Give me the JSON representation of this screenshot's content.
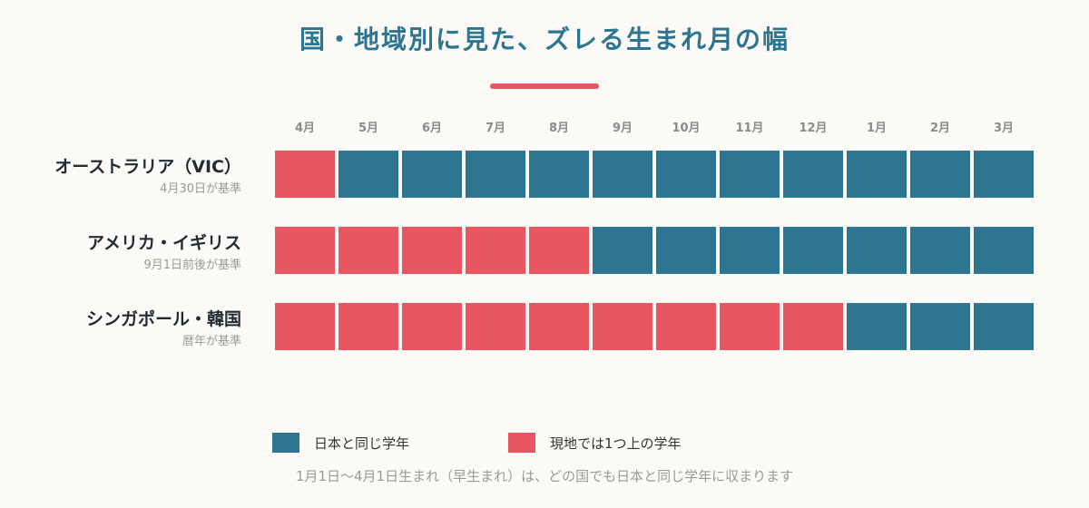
{
  "title": "国・地域別に見た、ズレる生まれ月の幅",
  "colors": {
    "same_year": "#2d7591",
    "ahead_year": "#e85662",
    "background": "#fcfaf7",
    "title": "#2d7591"
  },
  "months": [
    "4月",
    "5月",
    "6月",
    "7月",
    "8月",
    "9月",
    "10月",
    "11月",
    "12月",
    "1月",
    "2月",
    "3月"
  ],
  "rows": [
    {
      "name": "オーストラリア（VIC）",
      "sub": "4月30日が基準",
      "cells": [
        "ahead",
        "same",
        "same",
        "same",
        "same",
        "same",
        "same",
        "same",
        "same",
        "same",
        "same",
        "same"
      ]
    },
    {
      "name": "アメリカ・イギリス",
      "sub": "9月1日前後が基準",
      "cells": [
        "ahead",
        "ahead",
        "ahead",
        "ahead",
        "ahead",
        "same",
        "same",
        "same",
        "same",
        "same",
        "same",
        "same"
      ]
    },
    {
      "name": "シンガポール・韓国",
      "sub": "暦年が基準",
      "cells": [
        "ahead",
        "ahead",
        "ahead",
        "ahead",
        "ahead",
        "ahead",
        "ahead",
        "ahead",
        "ahead",
        "same",
        "same",
        "same"
      ]
    }
  ],
  "legend": {
    "same_label": "日本と同じ学年",
    "ahead_label": "現地では1つ上の学年"
  },
  "footnote": "1月1日〜4月1日生まれ（早生まれ）は、どの国でも日本と同じ学年に収まります"
}
